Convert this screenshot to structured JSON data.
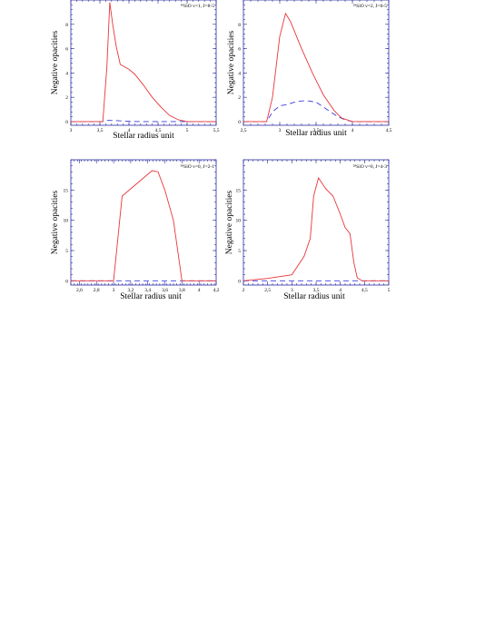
{
  "chart_data": [
    {
      "type": "line",
      "xlabel": "Stellar radius unit",
      "ylabel": "Negative opacities",
      "annotation": "²⁹SiO v=1, J=8-5",
      "xlim": [
        3,
        5.5
      ],
      "ylim": [
        -0.3,
        10
      ],
      "xticks": [
        3,
        3.5,
        4,
        4.5,
        5,
        5.5
      ],
      "xtick_labels": [
        "3",
        "3,5",
        "4",
        "4,5",
        "5",
        "5,5"
      ],
      "yticks": [
        0,
        2,
        4,
        6,
        8
      ],
      "ytick_labels": [
        "0",
        "2",
        "4",
        "6",
        "8"
      ],
      "series": [
        {
          "style": "solid",
          "color": "#e8363a",
          "x": [
            3,
            3.55,
            3.62,
            3.67,
            3.72,
            3.78,
            3.85,
            4.0,
            4.1,
            4.25,
            4.4,
            4.55,
            4.7,
            4.85,
            5.0,
            5.2,
            5.5
          ],
          "y": [
            0,
            0,
            4.5,
            9.8,
            8.0,
            6.2,
            4.7,
            4.3,
            3.9,
            3.0,
            2.0,
            1.2,
            0.5,
            0.15,
            0,
            0,
            0
          ]
        },
        {
          "style": "dashed",
          "color": "#3a3ae0",
          "x": [
            3,
            3.55,
            3.62,
            3.7,
            3.8,
            3.9,
            4.0,
            4.2,
            5.5
          ],
          "y": [
            0,
            0,
            0.1,
            0.1,
            0.08,
            0.05,
            0.02,
            0,
            0
          ]
        }
      ]
    },
    {
      "type": "line",
      "xlabel": "Stellar radius unit",
      "ylabel": "Negative opacities",
      "annotation": "²⁹SiO v=2, J=6-5",
      "xlim": [
        2.5,
        4.5
      ],
      "ylim": [
        -0.3,
        10
      ],
      "xticks": [
        2.5,
        3,
        3.5,
        4,
        4.5
      ],
      "xtick_labels": [
        "2,5",
        "3",
        "3,5",
        "4",
        "4,5"
      ],
      "yticks": [
        0,
        2,
        4,
        6,
        8
      ],
      "ytick_labels": [
        "0",
        "2",
        "4",
        "6",
        "8"
      ],
      "series": [
        {
          "style": "solid",
          "color": "#e8363a",
          "x": [
            2.5,
            2.82,
            2.9,
            3.0,
            3.08,
            3.15,
            3.3,
            3.45,
            3.6,
            3.75,
            3.85,
            4.0,
            4.2,
            4.5
          ],
          "y": [
            0,
            0,
            2.0,
            7.0,
            8.9,
            8.2,
            6.0,
            4.0,
            2.2,
            0.9,
            0.3,
            0,
            0,
            0
          ]
        },
        {
          "style": "dashed",
          "color": "#3a3ae0",
          "x": [
            2.5,
            2.82,
            2.9,
            3.0,
            3.1,
            3.2,
            3.3,
            3.4,
            3.5,
            3.6,
            3.7,
            3.8,
            3.9,
            4.0,
            4.5
          ],
          "y": [
            0,
            0,
            0.8,
            1.3,
            1.4,
            1.6,
            1.7,
            1.7,
            1.6,
            1.2,
            0.8,
            0.4,
            0.15,
            0,
            0
          ]
        }
      ]
    },
    {
      "type": "line",
      "xlabel": "Stellar radius unit",
      "ylabel": "Negative opacities",
      "annotation": "²⁸SiO v=0, J=2-1",
      "xlim": [
        2.5,
        4.2
      ],
      "ylim": [
        -0.7,
        20
      ],
      "xticks": [
        2.6,
        2.8,
        3,
        3.2,
        3.4,
        3.6,
        3.8,
        4,
        4.2
      ],
      "xtick_labels": [
        "2,6",
        "2,8",
        "3",
        "3,2",
        "3,4",
        "3,6",
        "3,8",
        "4",
        "4,2"
      ],
      "yticks": [
        0,
        5,
        10,
        15
      ],
      "ytick_labels": [
        "0",
        "5",
        "10",
        "15"
      ],
      "series": [
        {
          "style": "solid",
          "color": "#e8363a",
          "x": [
            2.5,
            3.0,
            3.1,
            3.45,
            3.52,
            3.6,
            3.7,
            3.8,
            3.85,
            4.2
          ],
          "y": [
            0,
            0,
            14,
            18.2,
            18.0,
            15.0,
            10.0,
            0,
            0,
            0
          ]
        },
        {
          "style": "dashed",
          "color": "#3a3ae0",
          "x": [
            2.5,
            4.2
          ],
          "y": [
            0,
            0
          ]
        }
      ]
    },
    {
      "type": "line",
      "xlabel": "Stellar radius unit",
      "ylabel": "Negative opacities",
      "annotation": "²⁸SiO v=0, J=4-3",
      "xlim": [
        2,
        5
      ],
      "ylim": [
        -0.7,
        20
      ],
      "xticks": [
        2,
        2.5,
        3,
        3.5,
        4,
        4.5,
        5
      ],
      "xtick_labels": [
        "2",
        "2,5",
        "3",
        "3,5",
        "4",
        "4,5",
        "5"
      ],
      "yticks": [
        0,
        5,
        10,
        15
      ],
      "ytick_labels": [
        "0",
        "5",
        "10",
        "15"
      ],
      "series": [
        {
          "style": "solid",
          "color": "#e8363a",
          "x": [
            2,
            2.5,
            3.0,
            3.25,
            3.38,
            3.45,
            3.55,
            3.7,
            3.85,
            4.0,
            4.1,
            4.2,
            4.28,
            4.35,
            4.45,
            4.55,
            5.0
          ],
          "y": [
            0,
            0.4,
            1.0,
            4.0,
            7.0,
            14.0,
            17.0,
            15.2,
            14.0,
            11.0,
            8.8,
            7.8,
            3.0,
            0.5,
            0,
            0,
            0
          ]
        },
        {
          "style": "dashed",
          "color": "#3a3ae0",
          "x": [
            2,
            5
          ],
          "y": [
            0,
            0
          ]
        }
      ]
    }
  ]
}
